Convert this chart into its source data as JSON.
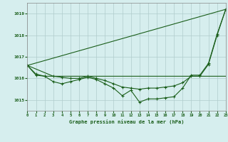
{
  "title": "Graphe pression niveau de la mer (hPa)",
  "background_color": "#d6eeee",
  "grid_color": "#b0cccc",
  "line_color": "#1a5e1a",
  "xlim": [
    0,
    23
  ],
  "ylim": [
    1014.5,
    1019.5
  ],
  "yticks": [
    1015,
    1016,
    1017,
    1018,
    1019
  ],
  "xticks": [
    0,
    1,
    2,
    3,
    4,
    5,
    6,
    7,
    8,
    9,
    10,
    11,
    12,
    13,
    14,
    15,
    16,
    17,
    18,
    19,
    20,
    21,
    22,
    23
  ],
  "series": [
    {
      "x": [
        0,
        1,
        2,
        3,
        4,
        5,
        6,
        7,
        8,
        9,
        10,
        11,
        12,
        13,
        14,
        15,
        16,
        17,
        18,
        19,
        20,
        21,
        22,
        23
      ],
      "y": [
        1016.6,
        1016.2,
        1016.1,
        1015.85,
        1015.75,
        1015.85,
        1015.95,
        1016.05,
        1015.95,
        1015.75,
        1015.55,
        1015.2,
        1015.45,
        1014.9,
        1015.05,
        1015.05,
        1015.1,
        1015.15,
        1015.55,
        1016.15,
        1016.15,
        1016.7,
        1018.05,
        1019.2
      ],
      "markers": true
    },
    {
      "x": [
        0,
        3,
        7,
        19,
        23
      ],
      "y": [
        1016.6,
        1016.1,
        1016.1,
        1016.1,
        1016.1
      ],
      "markers": false
    },
    {
      "x": [
        0,
        23
      ],
      "y": [
        1016.6,
        1019.2
      ],
      "markers": false
    },
    {
      "x": [
        0,
        1,
        2,
        3,
        4,
        5,
        6,
        7,
        8,
        9,
        10,
        11,
        12,
        13,
        14,
        15,
        16,
        17,
        18,
        19,
        20,
        21,
        22,
        23
      ],
      "y": [
        1016.6,
        1016.15,
        1016.1,
        1016.1,
        1016.05,
        1016.0,
        1016.0,
        1016.1,
        1016.0,
        1015.9,
        1015.75,
        1015.6,
        1015.55,
        1015.5,
        1015.55,
        1015.55,
        1015.6,
        1015.65,
        1015.8,
        1016.1,
        1016.1,
        1016.65,
        1018.0,
        1019.2
      ],
      "markers": true
    }
  ]
}
